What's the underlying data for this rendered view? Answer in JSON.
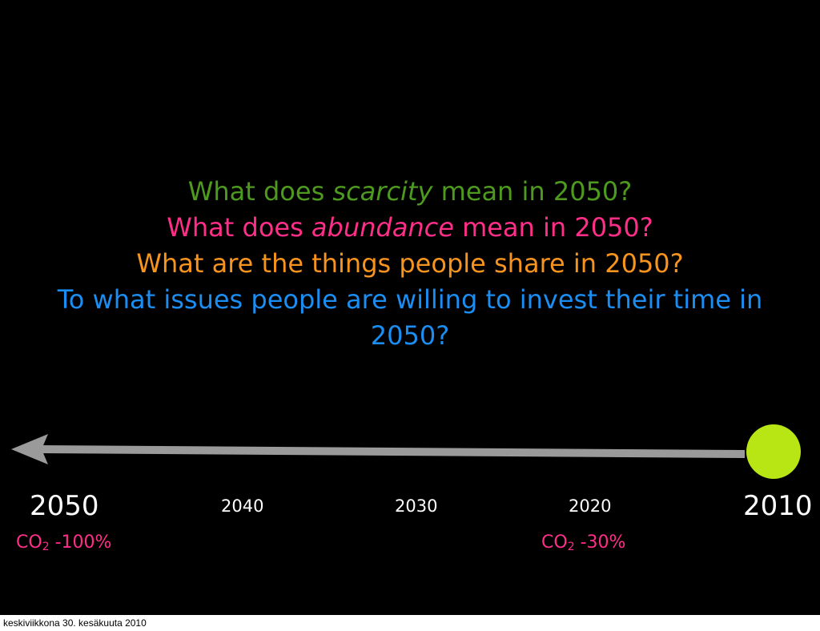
{
  "questions": {
    "q1": {
      "prefix": "What does ",
      "emph": "scarcity",
      "suffix": " mean in 2050?"
    },
    "q2": {
      "prefix": "What does ",
      "emph": "abundance",
      "suffix": " mean in 2050?"
    },
    "q3": {
      "text": "What are the things people share in 2050?"
    },
    "q4": {
      "text": "To what issues people are willing to invest their time in 2050?"
    }
  },
  "timeline": {
    "years": {
      "y2050": "2050",
      "y2040": "2040",
      "y2030": "2030",
      "y2020": "2020",
      "y2010": "2010"
    },
    "co2_left": {
      "prefix": "CO",
      "sub": "2",
      "value": " -100%"
    },
    "co2_right": {
      "prefix": "CO",
      "sub": "2",
      "value": " -30%"
    }
  },
  "colors": {
    "background": "#000000",
    "scarcity": "#4e9a1f",
    "abundance": "#ff2e88",
    "share": "#f7941d",
    "invest": "#1a8ef2",
    "arrow": "#9a9a9a",
    "dot": "#b8e614",
    "co2": "#ff2e88"
  },
  "footer": {
    "date": "keskiviikkona 30. kesäkuuta 2010"
  }
}
